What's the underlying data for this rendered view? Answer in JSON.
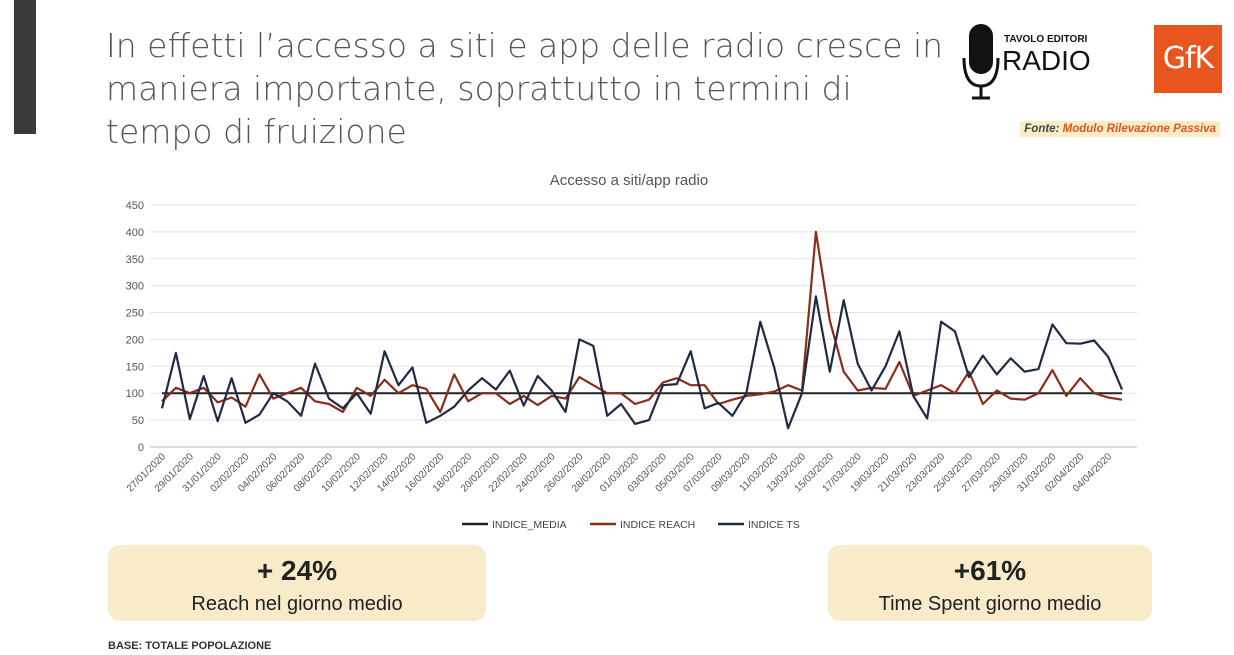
{
  "header": {
    "title": "In effetti l’accesso a siti e app delle radio cresce in maniera importante, soprattutto in termini di tempo di fruizione",
    "source_label": "Fonte:",
    "source_value": "Modulo Rilevazione Passiva"
  },
  "logos": {
    "radio_top": "TAVOLO EDITORI",
    "radio_main": "RADIO",
    "gfk": "GfK"
  },
  "colors": {
    "indice_media": "#222222",
    "indice_reach": "#8b2d1a",
    "indice_ts": "#1f2a44",
    "highlight_box": "#f7ebc9",
    "gfk_orange": "#e8551f"
  },
  "highlights": [
    {
      "value": "+ 24%",
      "label": "Reach nel giorno medio"
    },
    {
      "value": "+61%",
      "label": "Time Spent giorno medio"
    }
  ],
  "footer": {
    "base": "BASE: TOTALE POPOLAZIONE"
  },
  "chart_data": {
    "type": "line",
    "title": "Accesso a siti/app radio",
    "xlabel": "",
    "ylabel": "",
    "ylim": [
      0,
      450
    ],
    "yticks": [
      0,
      50,
      100,
      150,
      200,
      250,
      300,
      350,
      400,
      450
    ],
    "grid": true,
    "legend_position": "bottom",
    "x": [
      "27/01/2020",
      "28/01/2020",
      "29/01/2020",
      "30/01/2020",
      "31/01/2020",
      "01/02/2020",
      "02/02/2020",
      "03/02/2020",
      "04/02/2020",
      "05/02/2020",
      "06/02/2020",
      "07/02/2020",
      "08/02/2020",
      "09/02/2020",
      "10/02/2020",
      "11/02/2020",
      "12/02/2020",
      "13/02/2020",
      "14/02/2020",
      "15/02/2020",
      "16/02/2020",
      "17/02/2020",
      "18/02/2020",
      "19/02/2020",
      "20/02/2020",
      "21/02/2020",
      "22/02/2020",
      "23/02/2020",
      "24/02/2020",
      "25/02/2020",
      "26/02/2020",
      "27/02/2020",
      "28/02/2020",
      "29/02/2020",
      "01/03/2020",
      "02/03/2020",
      "03/03/2020",
      "04/03/2020",
      "05/03/2020",
      "06/03/2020",
      "07/03/2020",
      "08/03/2020",
      "09/03/2020",
      "10/03/2020",
      "11/03/2020",
      "12/03/2020",
      "13/03/2020",
      "14/03/2020",
      "15/03/2020",
      "16/03/2020",
      "17/03/2020",
      "18/03/2020",
      "19/03/2020",
      "20/03/2020",
      "21/03/2020",
      "22/03/2020",
      "23/03/2020",
      "24/03/2020",
      "25/03/2020",
      "26/03/2020",
      "27/03/2020",
      "28/03/2020",
      "29/03/2020",
      "30/03/2020",
      "31/03/2020",
      "01/04/2020",
      "02/04/2020",
      "03/04/2020",
      "04/04/2020",
      "05/04/2020"
    ],
    "x_tick_labels": [
      "27/01/2020",
      "29/01/2020",
      "31/01/2020",
      "02/02/2020",
      "04/02/2020",
      "06/02/2020",
      "08/02/2020",
      "10/02/2020",
      "12/02/2020",
      "14/02/2020",
      "16/02/2020",
      "18/02/2020",
      "20/02/2020",
      "22/02/2020",
      "24/02/2020",
      "26/02/2020",
      "28/02/2020",
      "01/03/2020",
      "03/03/2020",
      "05/03/2020",
      "07/03/2020",
      "09/03/2020",
      "11/03/2020",
      "13/03/2020",
      "15/03/2020",
      "17/03/2020",
      "19/03/2020",
      "21/03/2020",
      "23/03/2020",
      "25/03/2020",
      "27/03/2020",
      "29/03/2020",
      "31/03/2020",
      "02/04/2020",
      "04/04/2020"
    ],
    "series": [
      {
        "name": "INDICE_MEDIA",
        "values": [
          100,
          100,
          100,
          100,
          100,
          100,
          100,
          100,
          100,
          100,
          100,
          100,
          100,
          100,
          100,
          100,
          100,
          100,
          100,
          100,
          100,
          100,
          100,
          100,
          100,
          100,
          100,
          100,
          100,
          100,
          100,
          100,
          100,
          100,
          100,
          100,
          100,
          100,
          100,
          100,
          100,
          100,
          100,
          100,
          100,
          100,
          100,
          100,
          100,
          100,
          100,
          100,
          100,
          100,
          100,
          100,
          100,
          100,
          100,
          100,
          100,
          100,
          100,
          100,
          100,
          100,
          100,
          100,
          100,
          100
        ]
      },
      {
        "name": "INDICE REACH",
        "values": [
          85,
          110,
          100,
          110,
          83,
          92,
          75,
          135,
          90,
          100,
          110,
          85,
          80,
          65,
          110,
          95,
          125,
          100,
          115,
          108,
          65,
          135,
          85,
          100,
          100,
          80,
          95,
          78,
          95,
          90,
          130,
          115,
          100,
          100,
          80,
          88,
          120,
          128,
          115,
          115,
          80,
          88,
          95,
          98,
          103,
          115,
          105,
          400,
          235,
          140,
          105,
          110,
          108,
          158,
          95,
          105,
          115,
          100,
          140,
          80,
          105,
          90,
          88,
          100,
          143,
          95,
          128,
          100,
          92,
          88
        ]
      },
      {
        "name": "INDICE TS",
        "values": [
          72,
          175,
          52,
          132,
          48,
          128,
          45,
          60,
          100,
          85,
          58,
          155,
          90,
          72,
          100,
          62,
          178,
          115,
          148,
          45,
          58,
          75,
          105,
          128,
          107,
          142,
          77,
          132,
          105,
          65,
          200,
          188,
          58,
          80,
          43,
          50,
          115,
          117,
          178,
          72,
          82,
          58,
          100,
          233,
          148,
          35,
          100,
          280,
          140,
          273,
          155,
          105,
          150,
          215,
          95,
          53,
          233,
          215,
          130,
          170,
          135,
          165,
          140,
          145,
          228,
          193,
          192,
          198,
          168,
          107
        ]
      }
    ]
  }
}
